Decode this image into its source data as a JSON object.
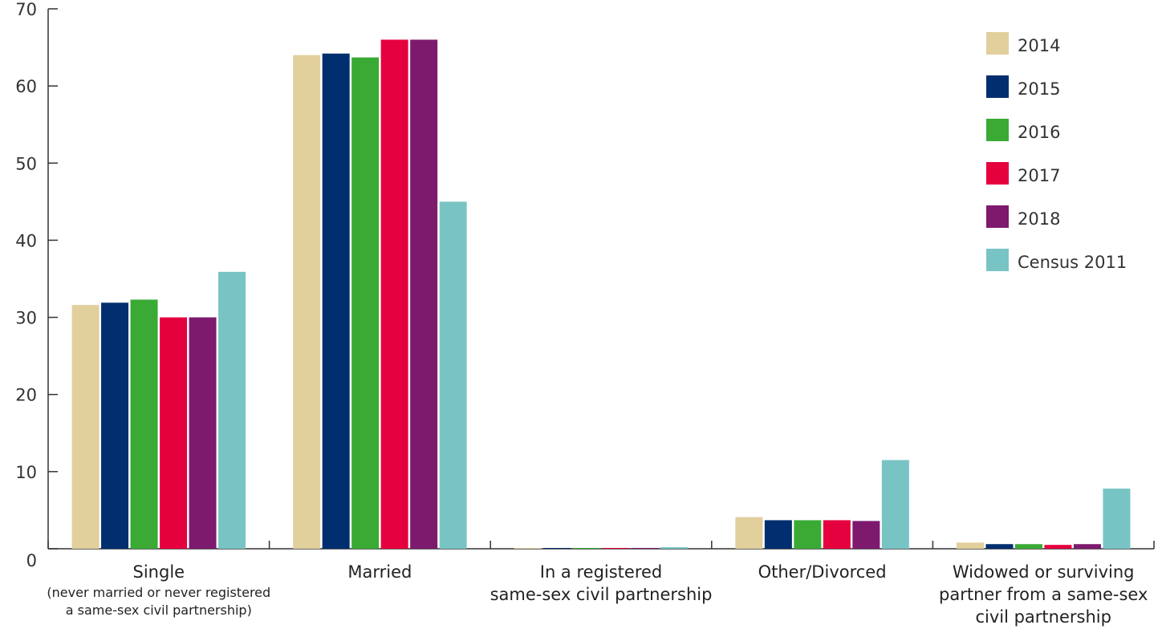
{
  "chart_data": {
    "type": "bar",
    "title": "",
    "xlabel": "",
    "ylabel": "",
    "ylim": [
      0,
      70
    ],
    "yticks": [
      0,
      10,
      20,
      30,
      40,
      50,
      60,
      70
    ],
    "grid": false,
    "legend_position": "top-right",
    "categories": [
      {
        "label": "Single",
        "sublabel": [
          "(never married or never registered",
          "a same-sex civil partnership)"
        ]
      },
      {
        "label": "Married",
        "sublabel": []
      },
      {
        "label": "In a registered same-sex civil partnership",
        "lines": [
          "In a registered",
          "same-sex civil partnership"
        ],
        "sublabel": []
      },
      {
        "label": "Other/Divorced",
        "sublabel": []
      },
      {
        "label": "Widowed or surviving partner from a same-sex civil partnership",
        "lines": [
          "Widowed or surviving",
          "partner from a same-sex",
          "civil partnership"
        ],
        "sublabel": []
      }
    ],
    "series": [
      {
        "name": "2014",
        "color": "#e1cf9c",
        "values": [
          31.6,
          64.0,
          0.1,
          4.1,
          0.8
        ]
      },
      {
        "name": "2015",
        "color": "#002e6e",
        "values": [
          31.9,
          64.2,
          0.1,
          3.7,
          0.6
        ]
      },
      {
        "name": "2016",
        "color": "#3aaa35",
        "values": [
          32.3,
          63.7,
          0.1,
          3.7,
          0.6
        ]
      },
      {
        "name": "2017",
        "color": "#e5003e",
        "values": [
          30.0,
          66.0,
          0.1,
          3.7,
          0.5
        ]
      },
      {
        "name": "2018",
        "color": "#7d1a6e",
        "values": [
          30.0,
          66.0,
          0.1,
          3.6,
          0.6
        ]
      },
      {
        "name": "Census 2011",
        "color": "#78c4c5",
        "values": [
          35.9,
          45.0,
          0.2,
          11.5,
          7.8
        ]
      }
    ]
  }
}
